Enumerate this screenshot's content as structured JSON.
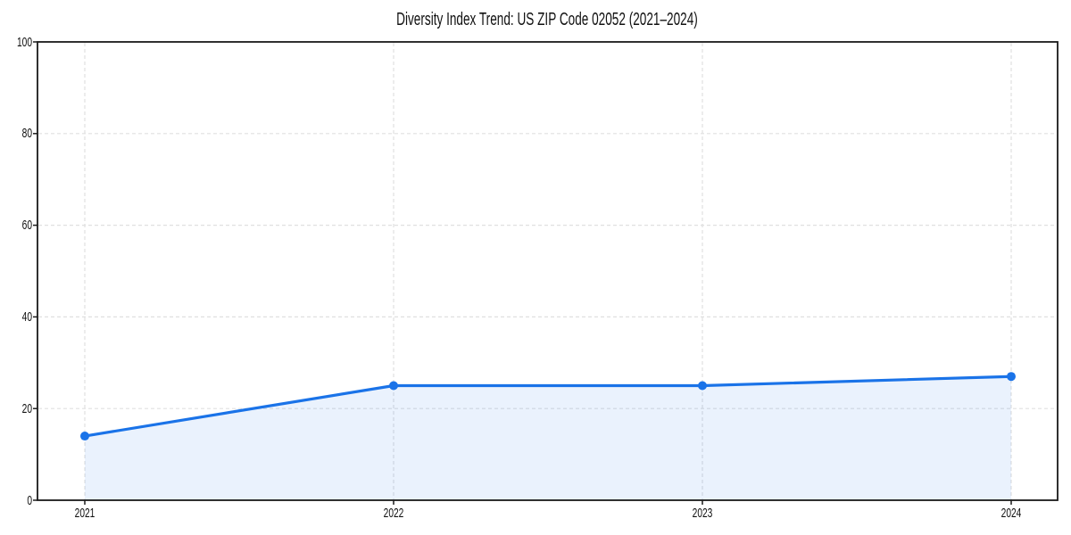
{
  "chart_data": {
    "type": "line",
    "title": "Diversity Index Trend: US ZIP Code 02052 (2021–2024)",
    "categories": [
      "2021",
      "2022",
      "2023",
      "2024"
    ],
    "x": [
      2021,
      2022,
      2023,
      2024
    ],
    "series": [
      {
        "name": "Diversity Index",
        "values": [
          14,
          25,
          25,
          27
        ]
      }
    ],
    "xlabel": "",
    "ylabel": "",
    "ylim": [
      0,
      100
    ],
    "yticks": [
      0,
      20,
      40,
      60,
      80,
      100
    ],
    "grid": true,
    "grid_style": "dashed",
    "legend": false,
    "area_fill": true,
    "colors": {
      "line": "#1a73e8",
      "marker": "#1a73e8",
      "fill": "#1a73e8",
      "fill_opacity": 0.09,
      "grid": "#e0e0e0",
      "axis": "#1a1a1a",
      "text": "#111111",
      "background": "#ffffff"
    }
  }
}
